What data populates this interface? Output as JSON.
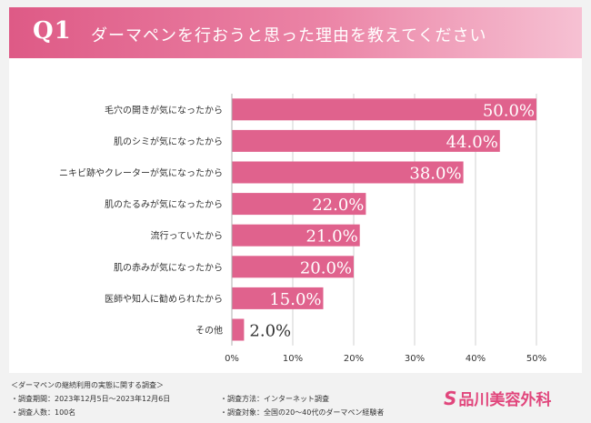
{
  "header": {
    "question": "Q1",
    "title": "ダーマペンを行おうと思った理由を教えてください"
  },
  "chart_data": {
    "type": "bar",
    "orientation": "horizontal",
    "categories": [
      "毛穴の開きが気になったから",
      "肌のシミが気になったから",
      "ニキビ跡やクレーターが気になったから",
      "肌のたるみが気になったから",
      "流行っていたから",
      "肌の赤みが気になったから",
      "医師や知人に勧められたから",
      "その他"
    ],
    "values": [
      50.0,
      44.0,
      38.0,
      22.0,
      21.0,
      20.0,
      15.0,
      2.0
    ],
    "value_labels": [
      "50.0%",
      "44.0%",
      "38.0%",
      "22.0%",
      "21.0%",
      "20.0%",
      "15.0%",
      "2.0%"
    ],
    "xlim": [
      0,
      50
    ],
    "xticks": [
      "0%",
      "10%",
      "20%",
      "30%",
      "40%",
      "50%"
    ],
    "grid": true,
    "bar_color": "#e0628d"
  },
  "footer": {
    "survey_title": "＜ダーマペンの継続利用の実態に関する調査＞",
    "period": "・調査期間：2023年12月5日〜2023年12月6日",
    "sample_size": "・調査人数：100名",
    "method": "・調査方法：インターネット調査",
    "target": "・調査対象：全国の20〜40代のダーマペン経験者"
  },
  "brand": {
    "mark": "S",
    "name": "品川美容外科",
    "color": "#e1467c"
  }
}
